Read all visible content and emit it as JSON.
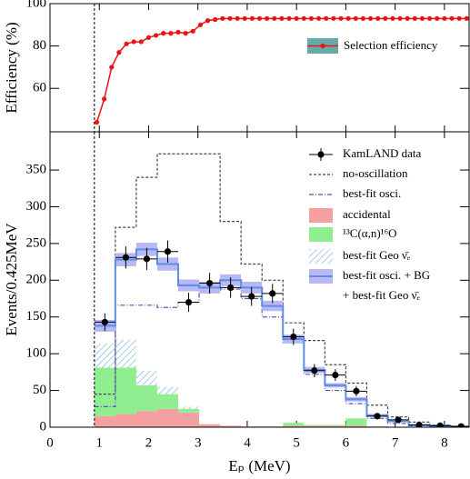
{
  "chart_data": [
    {
      "type": "line",
      "ylabel": "Efficiency (%)",
      "xlim": [
        0,
        8.5
      ],
      "xticks": [
        0,
        1,
        2,
        3,
        4,
        5,
        6,
        7,
        8
      ],
      "ylim": [
        39.5,
        100
      ],
      "yticks": [
        60,
        80,
        100
      ],
      "series": [
        {
          "name": "Selection efficiency",
          "color": "#ee1111",
          "x": [
            0.95,
            1.1,
            1.25,
            1.4,
            1.55,
            1.7,
            1.85,
            2.0,
            2.15,
            2.3,
            2.45,
            2.6,
            2.75,
            2.9,
            3.05,
            3.2,
            3.35,
            3.5,
            3.65,
            3.8,
            3.95,
            4.1,
            4.25,
            4.4,
            4.55,
            4.7,
            4.85,
            5.0,
            5.15,
            5.3,
            5.45,
            5.6,
            5.75,
            5.9,
            6.05,
            6.2,
            6.35,
            6.5,
            6.65,
            6.8,
            6.95,
            7.1,
            7.25,
            7.4,
            7.55,
            7.7,
            7.85,
            8.0,
            8.15,
            8.3,
            8.45
          ],
          "values": [
            44,
            55,
            70,
            77,
            81,
            82,
            82,
            84,
            85,
            86,
            86,
            86.5,
            86,
            87,
            90,
            92,
            92.5,
            93,
            93,
            93,
            93,
            93,
            93,
            93,
            93,
            93,
            93,
            93,
            93,
            93,
            93,
            93,
            93,
            93,
            93,
            93,
            93,
            93,
            93,
            93,
            93,
            93,
            93,
            93,
            93,
            93,
            93,
            93,
            93,
            93,
            93
          ]
        }
      ]
    },
    {
      "type": "histogram",
      "xlabel": "Eₚ (MeV)",
      "ylabel": "Events/0.425MeV",
      "xlim": [
        0,
        8.5
      ],
      "xticks": [
        0,
        1,
        2,
        3,
        4,
        5,
        6,
        7,
        8
      ],
      "ylim": [
        0,
        402
      ],
      "yticks": [
        0,
        50,
        100,
        150,
        200,
        250,
        300,
        350
      ],
      "bins": [
        0.9,
        1.325,
        1.75,
        2.175,
        2.6,
        3.025,
        3.45,
        3.875,
        4.3,
        4.725,
        5.15,
        5.575,
        6.0,
        6.425,
        6.85,
        7.275,
        7.7,
        8.125,
        8.55
      ],
      "series": [
        {
          "name": "KamLAND data",
          "style": "points",
          "color": "#000000",
          "values": [
            143,
            231,
            229,
            239,
            170,
            196,
            190,
            178,
            182,
            123,
            77,
            71,
            49,
            15,
            10,
            3,
            2,
            1
          ],
          "errors": [
            12,
            15,
            15,
            15,
            13,
            14,
            14,
            13,
            13,
            11,
            9,
            8,
            7,
            4,
            3,
            2,
            1.5,
            1
          ]
        },
        {
          "name": "no-oscillation",
          "style": "dashed",
          "color": "#444444",
          "values": [
            45,
            272,
            340,
            372,
            372,
            372,
            280,
            222,
            200,
            142,
            118,
            85,
            60,
            30,
            14,
            7,
            3,
            1
          ]
        },
        {
          "name": "best-fit osci.",
          "style": "dashdot",
          "color": "#5555bb",
          "values": [
            28,
            166,
            166,
            163,
            170,
            186,
            188,
            175,
            150,
            115,
            72,
            50,
            32,
            12,
            5,
            2,
            1,
            0
          ]
        },
        {
          "name": "accidental",
          "style": "fill",
          "color": "#f4a0a0",
          "values": [
            15,
            18,
            22,
            25,
            20,
            4,
            2,
            1,
            1,
            2,
            2,
            2,
            2,
            1,
            0,
            0,
            0,
            0
          ]
        },
        {
          "name": "¹³C(α,n)¹⁶O",
          "style": "fill",
          "color": "#90ee90",
          "values": [
            66,
            63,
            35,
            20,
            5,
            0,
            0,
            0,
            0,
            4,
            1,
            1,
            10,
            0,
            0,
            0,
            0,
            0
          ]
        },
        {
          "name": "best-fit Geo ν̄ₑ",
          "style": "hatch",
          "color": "#6fa8dc",
          "values": [
            33,
            38,
            20,
            10,
            3,
            0,
            0,
            0,
            0,
            0,
            0,
            0,
            0,
            0,
            0,
            0,
            0,
            0
          ]
        },
        {
          "name": [
            "best-fit osci. + BG",
            "+ best-fit Geo ν̄ₑ"
          ],
          "style": "band",
          "color": "#5b8ee6",
          "band_color": "#b8b8f4",
          "values": [
            138,
            228,
            242,
            222,
            193,
            190,
            200,
            190,
            165,
            120,
            78,
            57,
            38,
            16,
            8,
            3,
            2,
            1
          ],
          "errors": [
            8,
            9,
            9,
            9,
            8,
            8,
            8,
            8,
            7,
            6,
            4,
            3,
            3,
            2,
            1,
            1,
            1,
            1
          ]
        }
      ]
    }
  ]
}
